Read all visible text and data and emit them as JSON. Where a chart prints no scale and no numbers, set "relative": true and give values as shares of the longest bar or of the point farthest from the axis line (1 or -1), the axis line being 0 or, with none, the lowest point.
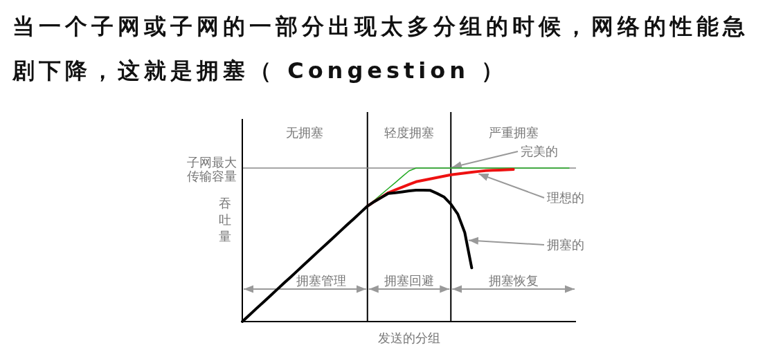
{
  "chart_data": {
    "type": "line",
    "title": "当一个子网或子网的一部分出现太多分组的时候，网络的性能急剧下降，这就是拥塞（ Congestion ）",
    "xlabel": "发送的分组",
    "ylabel": "吞吐量",
    "relative": true,
    "categories": [
      null,
      null,
      null,
      null,
      null,
      null,
      null,
      null,
      null,
      null,
      null,
      null,
      null,
      null,
      null,
      null,
      null,
      null,
      null,
      null,
      null,
      null,
      null,
      null,
      null,
      null,
      null,
      null,
      null,
      null,
      null,
      null,
      null,
      null,
      null,
      null,
      null,
      null,
      null,
      null,
      null,
      null,
      null,
      null,
      null,
      null,
      null,
      null,
      null
    ],
    "series": [
      {
        "name": "完美的",
        "color": "#22aa22",
        "values": [
          null,
          null,
          null,
          null,
          null,
          null,
          null,
          null,
          null,
          null,
          null,
          null,
          null,
          null,
          null,
          null,
          null,
          null,
          0.752,
          0.79,
          0.829,
          0.867,
          0.905,
          0.944,
          0.982,
          1,
          1,
          1,
          1,
          1,
          1,
          1,
          1,
          1,
          1,
          1,
          1,
          1,
          1,
          1,
          1,
          1,
          1,
          1,
          1,
          1,
          1,
          1,
          null
        ]
      },
      {
        "name": "理想的",
        "color": "#ee1111",
        "values": [
          null,
          null,
          null,
          null,
          null,
          null,
          null,
          null,
          null,
          null,
          null,
          null,
          null,
          null,
          null,
          null,
          null,
          null,
          0.752,
          0.782,
          0.81,
          0.839,
          0.858,
          0.876,
          0.894,
          0.911,
          0.92,
          0.929,
          0.938,
          0.947,
          0.956,
          0.962,
          0.967,
          0.973,
          0.978,
          0.983,
          0.985,
          0.987,
          0.989,
          0.991,
          null,
          null,
          null,
          null,
          null,
          null,
          null,
          null,
          null
        ]
      },
      {
        "name": "拥塞的",
        "color": "#000000",
        "values": [
          0,
          0.042,
          0.084,
          0.125,
          0.167,
          0.209,
          0.251,
          0.292,
          0.334,
          0.376,
          0.418,
          0.46,
          0.501,
          0.543,
          0.585,
          0.627,
          0.668,
          0.71,
          0.752,
          0.782,
          0.808,
          0.834,
          0.839,
          0.845,
          0.851,
          0.856,
          0.856,
          0.855,
          0.835,
          0.812,
          0.765,
          0.7,
          0.58,
          0.35,
          null,
          null,
          null,
          null,
          null,
          null,
          null,
          null,
          null,
          null,
          null,
          null,
          null,
          null,
          null
        ]
      }
    ],
    "ref_lines": [
      {
        "axis": "y",
        "value": 1,
        "label": "子网最大传输容量",
        "color": "#888888"
      }
    ],
    "annotations": [
      "无拥塞",
      "轻度拥塞",
      "严重拥塞",
      "拥塞管理",
      "拥塞回避",
      "拥塞恢复"
    ]
  }
}
